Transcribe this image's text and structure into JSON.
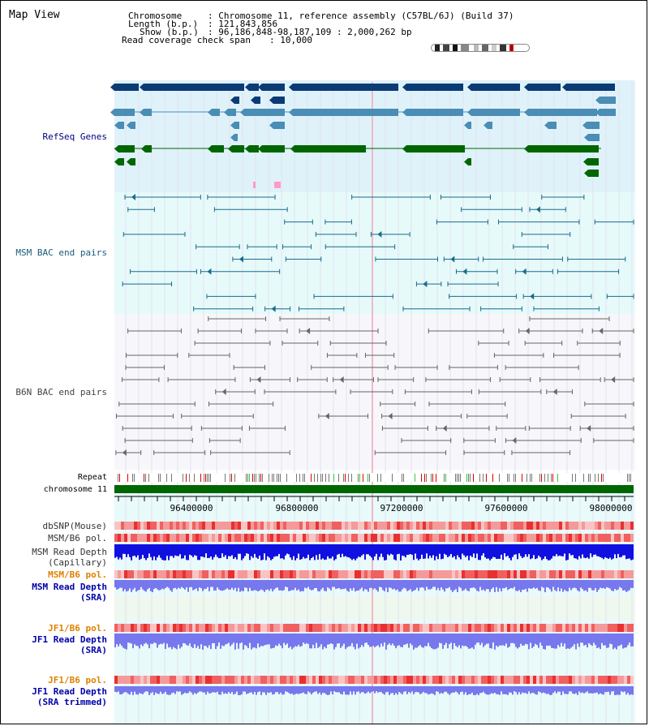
{
  "page_title": "Map View",
  "header": {
    "chromosome_key": "Chromosome",
    "chromosome_val": ": Chromosome 11, reference assembly (C57BL/6J) (Build 37)",
    "length_key": "Length (b.p.)",
    "length_val": ": 121,843,856",
    "show_key": "Show (b.p.)",
    "show_val": ": 96,186,848-98,187,109 : 2,000,262 bp",
    "coverage_key": "Read coverage check span",
    "coverage_val": ": 10,000"
  },
  "tracks": {
    "refseq": "RefSeq Genes",
    "msm_bac": "MSM BAC end pairs",
    "b6n_bac": "B6N BAC end pairs",
    "repeat": "Repeat",
    "chromosome": "chromosome 11",
    "dbsnp": "dbSNP(Mouse)",
    "msm_b6_pol": "MSM/B6 pol.",
    "msm_depth_cap_1": "MSM Read Depth",
    "msm_depth_cap_2": "(Capillary)",
    "msm_b6_pol_2": "MSM/B6 pol.",
    "msm_depth_sra_1": "MSM Read Depth",
    "msm_depth_sra_2": "(SRA)",
    "jf1_pol": "JF1/B6 pol.",
    "jf1_depth_sra_1": "JF1 Read Depth",
    "jf1_depth_sra_2": "(SRA)",
    "jf1_pol_2": "JF1/B6 pol.",
    "jf1_depth_trim_1": "JF1 Read Depth",
    "jf1_depth_trim_2": "(SRA trimmed)"
  },
  "axis": {
    "ticks": [
      "96400000",
      "96800000",
      "97200000",
      "97600000",
      "98000000"
    ]
  },
  "colors": {
    "refseq_dark": "#0b3b75",
    "refseq_mid": "#4a8db5",
    "refseq_green": "#006600",
    "refseq_bg": "#dff2fa",
    "msm_bac": "#1a6b8a",
    "msm_bg": "#e6fafa",
    "b6n_bac": "#666666",
    "chromosome_bar": "#006600",
    "msm_depth": "#1010e0",
    "sra_depth": "#7777ee"
  }
}
